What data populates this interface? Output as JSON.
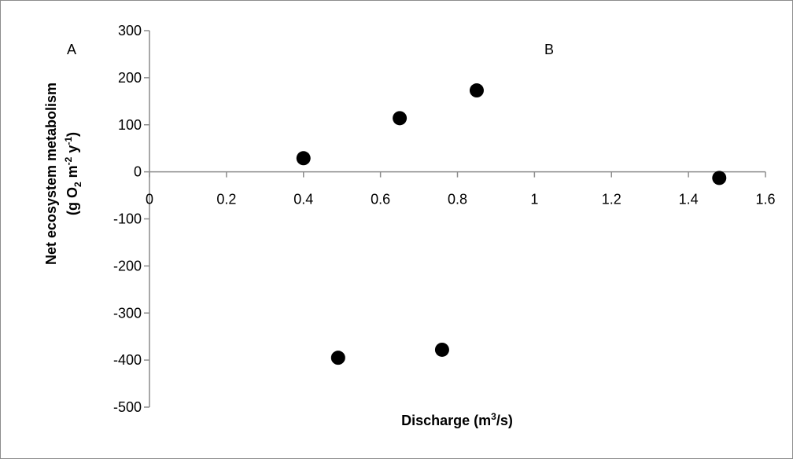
{
  "chart_data": {
    "type": "scatter",
    "xlabel": {
      "prefix": "Discharge (m",
      "sup": "3",
      "suffix": "/s)"
    },
    "ylabel": {
      "line1": "Net ecosystem metabolism",
      "line2": {
        "p1": "(g O",
        "sub": "2",
        "p2": " m",
        "sup1": "-2",
        "p3": " y",
        "sup2": "-1",
        "p4": ")"
      }
    },
    "xlim": [
      0,
      1.6
    ],
    "ylim": [
      -500,
      300
    ],
    "x_ticks": [
      {
        "value": 0,
        "label": "0"
      },
      {
        "value": 0.2,
        "label": "0.2"
      },
      {
        "value": 0.4,
        "label": "0.4"
      },
      {
        "value": 0.6,
        "label": "0.6"
      },
      {
        "value": 0.8,
        "label": "0.8"
      },
      {
        "value": 1,
        "label": "1"
      },
      {
        "value": 1.2,
        "label": "1.2"
      },
      {
        "value": 1.4,
        "label": "1.4"
      },
      {
        "value": 1.6,
        "label": "1.6"
      }
    ],
    "y_ticks": [
      {
        "value": 300,
        "label": "300"
      },
      {
        "value": 200,
        "label": "200"
      },
      {
        "value": 100,
        "label": "100"
      },
      {
        "value": 0,
        "label": "0"
      },
      {
        "value": -100,
        "label": "-100"
      },
      {
        "value": -200,
        "label": "-200"
      },
      {
        "value": -300,
        "label": "-300"
      },
      {
        "value": -400,
        "label": "-400"
      },
      {
        "value": -500,
        "label": "-500"
      }
    ],
    "series": [
      {
        "points": [
          {
            "x": 0.4,
            "y": 29
          },
          {
            "x": 0.49,
            "y": -395
          },
          {
            "x": 0.65,
            "y": 114
          },
          {
            "x": 0.76,
            "y": -378
          },
          {
            "x": 0.85,
            "y": 173
          },
          {
            "x": 1.48,
            "y": -13
          }
        ]
      }
    ],
    "annotations": [
      "A",
      "B"
    ],
    "grid": false,
    "legend": "none",
    "colors": {
      "marker": "#000000",
      "axis": "#8c8c8c",
      "frame": "#8c8c8c"
    }
  }
}
